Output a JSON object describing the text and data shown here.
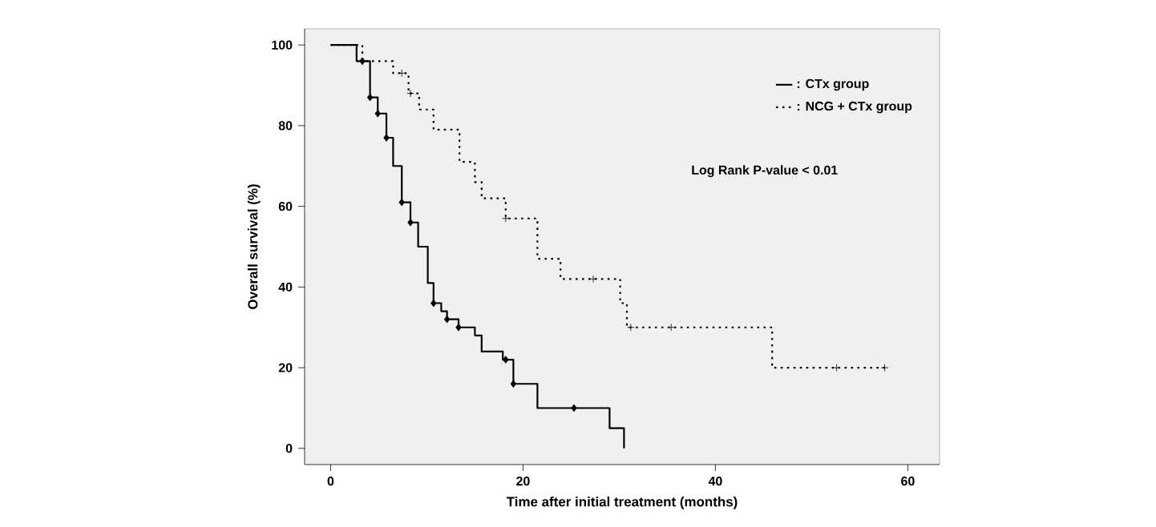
{
  "chart_data": {
    "type": "step",
    "xlabel": "Time after initial treatment (months)",
    "ylabel": "Overall survival (%)",
    "xlim": [
      -2.7,
      63.3
    ],
    "ylim": [
      -4,
      104
    ],
    "xticks": [
      0,
      20,
      40,
      60
    ],
    "yticks": [
      0,
      20,
      40,
      60,
      80,
      100
    ],
    "legend": "top right",
    "grid": false,
    "annotations": [
      "Log Rank P-value < 0.01"
    ],
    "series": [
      {
        "name": ": CTx group",
        "color": "#000000",
        "line_style": "solid",
        "marker": "none",
        "x": [
          0,
          2.7,
          4.1,
          4.9,
          5.8,
          6.5,
          7.4,
          8.3,
          9.1,
          10.1,
          10.7,
          11.5,
          12.1,
          13.3,
          15,
          15.7,
          17.9,
          19,
          21.5,
          29,
          30.5
        ],
        "values": [
          100,
          96,
          87,
          83,
          77,
          70,
          61,
          56,
          50,
          41,
          36,
          34,
          32,
          30,
          28,
          24,
          22,
          16,
          10,
          5,
          0
        ]
      },
      {
        "name": ": NCG + CTx group",
        "color": "#000000",
        "line_style": "dotted",
        "marker": "none",
        "x": [
          0,
          3.3,
          6.5,
          8.1,
          9.2,
          10.7,
          13.4,
          15,
          15.7,
          18.2,
          21.5,
          23.9,
          30.1,
          30.8,
          45.9,
          57.6
        ],
        "values": [
          100,
          96,
          93,
          88,
          84,
          79,
          71,
          66,
          62,
          57,
          47,
          42,
          36,
          30,
          20,
          20
        ]
      },
      {
        "type": "scatter",
        "color": "#000000",
        "marker": "diamond",
        "x": [
          3.3,
          4.1,
          4.9,
          5.8,
          7.4,
          8.3,
          10.7,
          12.1,
          13.3,
          18.2,
          19,
          25.3
        ],
        "values": [
          96,
          87,
          83,
          77,
          61,
          56,
          36,
          32,
          30,
          22,
          16,
          10
        ]
      },
      {
        "type": "scatter",
        "color": "#000000",
        "marker": "cross",
        "x": [
          7.4,
          8.3,
          18.2,
          27.3,
          31.2,
          35.4,
          52.6,
          57.6
        ],
        "values": [
          93,
          88,
          57,
          42,
          30,
          30,
          20,
          20
        ]
      }
    ]
  }
}
